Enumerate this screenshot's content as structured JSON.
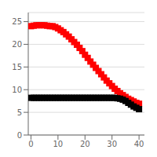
{
  "chart_data": {
    "type": "scatter",
    "x": [
      0,
      1,
      2,
      3,
      4,
      5,
      6,
      7,
      8,
      9,
      10,
      11,
      12,
      13,
      14,
      15,
      16,
      17,
      18,
      19,
      20,
      21,
      22,
      23,
      24,
      25,
      26,
      27,
      28,
      29,
      30,
      31,
      32,
      33,
      34,
      35,
      36,
      37,
      38,
      39,
      40
    ],
    "series": [
      {
        "color": "#ff0000",
        "marker": "square",
        "values": [
          24.0,
          24.1,
          24.2,
          24.2,
          24.2,
          24.2,
          24.1,
          24.0,
          24.0,
          23.8,
          23.5,
          23.1,
          22.7,
          22.2,
          21.7,
          21.1,
          20.5,
          19.9,
          19.2,
          18.5,
          17.7,
          17.0,
          16.2,
          15.5,
          14.8,
          14.1,
          13.4,
          12.7,
          12.0,
          11.4,
          10.8,
          10.2,
          9.7,
          9.2,
          8.8,
          8.4,
          8.0,
          7.7,
          7.4,
          7.1,
          6.9
        ]
      },
      {
        "color": "#000000",
        "marker": "square",
        "values": [
          8.2,
          8.2,
          8.2,
          8.2,
          8.2,
          8.2,
          8.2,
          8.2,
          8.2,
          8.2,
          8.2,
          8.2,
          8.2,
          8.2,
          8.2,
          8.2,
          8.2,
          8.2,
          8.2,
          8.2,
          8.2,
          8.2,
          8.2,
          8.2,
          8.2,
          8.2,
          8.2,
          8.2,
          8.2,
          8.2,
          8.2,
          8.2,
          8.1,
          8.0,
          7.8,
          7.5,
          7.1,
          6.7,
          6.3,
          6.0,
          5.7
        ]
      }
    ],
    "xlim": [
      -1,
      42
    ],
    "ylim": [
      0,
      27
    ],
    "xticks": [
      0,
      10,
      20,
      30,
      40
    ],
    "yticks": [
      0,
      5,
      10,
      15,
      20,
      25
    ],
    "grid": true
  }
}
